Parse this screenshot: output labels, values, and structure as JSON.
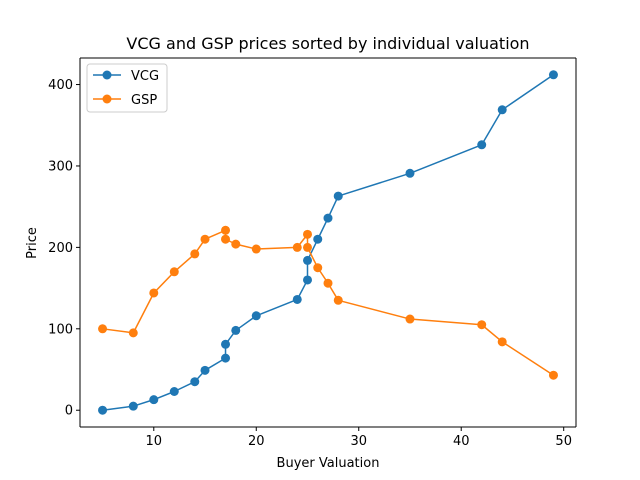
{
  "chart_data": {
    "type": "line",
    "title": "VCG and GSP prices sorted by individual valuation",
    "xlabel": "Buyer Valuation",
    "ylabel": "Price",
    "xlim": [
      2.8,
      51.2
    ],
    "ylim": [
      -20.6,
      432.6
    ],
    "xticks": [
      10,
      20,
      30,
      40,
      50
    ],
    "yticks": [
      0,
      100,
      200,
      300,
      400
    ],
    "grid": false,
    "legend_position": "top-left",
    "series": [
      {
        "name": "VCG",
        "color": "#1f77b4",
        "marker": "circle",
        "x": [
          5,
          8,
          10,
          12,
          14,
          15,
          17,
          17,
          18,
          20,
          24,
          25,
          25,
          26,
          27,
          28,
          35,
          42,
          44,
          49
        ],
        "y": [
          0,
          5,
          13,
          23,
          35,
          49,
          64,
          81,
          98,
          116,
          136,
          160,
          184,
          210,
          236,
          263,
          291,
          326,
          369,
          412
        ]
      },
      {
        "name": "GSP",
        "color": "#ff7f0e",
        "marker": "circle",
        "x": [
          5,
          8,
          10,
          12,
          14,
          15,
          17,
          17,
          18,
          20,
          24,
          25,
          25,
          26,
          27,
          28,
          35,
          42,
          44,
          49
        ],
        "y": [
          100,
          95,
          144,
          170,
          192,
          210,
          221,
          210,
          204,
          198,
          200,
          216,
          200,
          175,
          156,
          135,
          112,
          105,
          84,
          43
        ]
      }
    ]
  }
}
